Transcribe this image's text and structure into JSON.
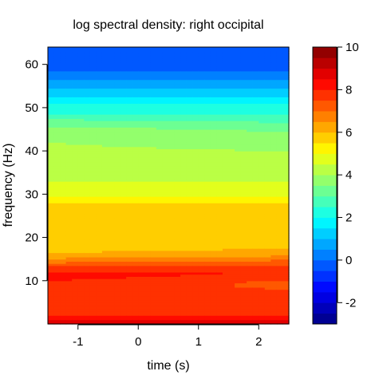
{
  "chart_data": {
    "type": "heatmap",
    "title": "log spectral density: right occipital",
    "xlabel": "time (s)",
    "ylabel": "frequency (Hz)",
    "xlim": [
      -1.5,
      2.5
    ],
    "ylim": [
      0,
      64
    ],
    "x_ticks": [
      "-1",
      "0",
      "1",
      "2"
    ],
    "y_ticks": [
      "10",
      "20",
      "30",
      "40",
      "50",
      "60"
    ],
    "colorbar_ticks": [
      "-2",
      "0",
      "2",
      "4",
      "6",
      "8",
      "10"
    ],
    "colorbar_range": [
      -3,
      10
    ],
    "level_step": 0.5,
    "profile_freq": [
      0,
      1.5,
      3,
      4.5,
      6,
      7,
      8,
      9,
      10,
      11,
      12,
      13,
      14,
      15,
      16,
      17,
      18,
      19,
      20,
      22,
      24,
      26,
      28,
      29,
      30,
      32,
      34,
      36,
      38,
      40,
      42,
      44,
      45,
      46,
      47,
      48,
      49,
      50,
      51,
      52,
      53,
      54,
      55,
      56,
      57,
      58,
      59,
      60,
      62,
      64
    ],
    "profile_value_start": [
      8.8,
      8.3,
      7.6,
      7.6,
      7.6,
      7.6,
      7.7,
      7.8,
      8.0,
      8.2,
      8.1,
      7.7,
      7.1,
      6.6,
      6.1,
      5.9,
      5.8,
      5.7,
      5.7,
      5.7,
      5.7,
      5.6,
      5.5,
      5.2,
      4.8,
      4.6,
      4.4,
      4.3,
      4.2,
      4.1,
      4.0,
      3.9,
      3.7,
      3.4,
      3.1,
      2.8,
      2.4,
      2.2,
      2.0,
      1.7,
      1.3,
      1.1,
      0.8,
      0.6,
      0.4,
      0.2,
      -0.1,
      -0.3,
      -0.4,
      -0.4
    ],
    "profile_value_end": [
      8.8,
      8.3,
      7.6,
      7.6,
      7.6,
      7.6,
      7.5,
      7.4,
      7.4,
      7.8,
      8.0,
      7.8,
      7.4,
      6.9,
      6.4,
      6.1,
      5.9,
      5.7,
      5.7,
      5.7,
      5.7,
      5.6,
      5.5,
      5.2,
      4.8,
      4.6,
      4.4,
      4.3,
      4.2,
      4.0,
      3.8,
      3.6,
      3.4,
      3.2,
      2.9,
      2.7,
      2.4,
      2.2,
      2.0,
      1.7,
      1.3,
      1.1,
      0.8,
      0.6,
      0.4,
      0.2,
      -0.1,
      -0.3,
      -0.4,
      -0.4
    ]
  }
}
